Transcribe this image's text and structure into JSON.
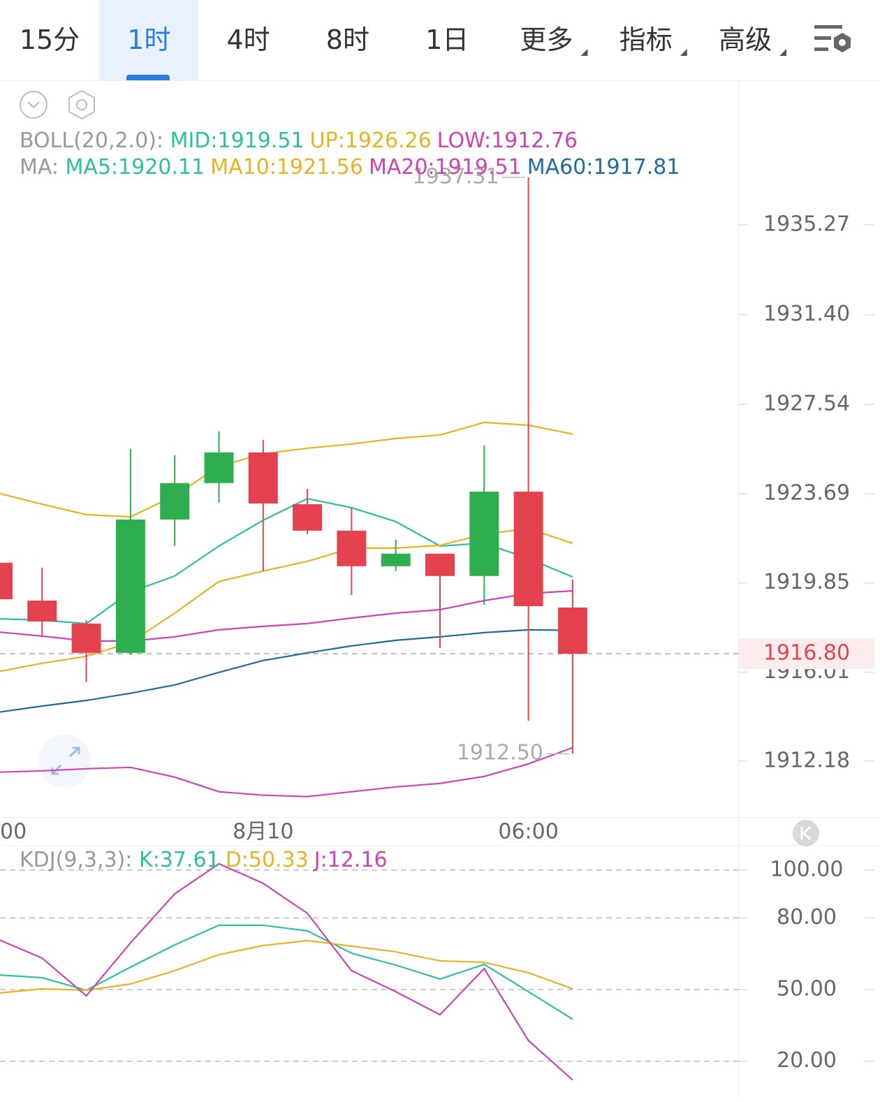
{
  "tabs": [
    "15分",
    "1时",
    "4时",
    "8时",
    "1日",
    "更多",
    "指标",
    "高级"
  ],
  "selected_tab": 1,
  "chart_data": [
    {
      "type": "candlestick",
      "categories": [
        "00",
        null,
        null,
        null,
        null,
        null,
        "8月10",
        null,
        null,
        null,
        null,
        null,
        "06:00",
        null
      ],
      "open": [
        1920.72,
        1919.09,
        1918.1,
        1916.84,
        1922.58,
        1924.15,
        1925.47,
        1923.24,
        1922.1,
        1920.57,
        1921.11,
        1920.15,
        1923.78,
        1918.79
      ],
      "high": [
        1920.72,
        1920.51,
        1918.25,
        1925.62,
        1925.35,
        1926.37,
        1926.01,
        1923.9,
        1923.09,
        1921.71,
        1921.11,
        1925.77,
        1937.31,
        1920.0
      ],
      "low": [
        1919.15,
        1917.53,
        1915.58,
        1916.75,
        1921.44,
        1923.3,
        1920.36,
        1921.95,
        1919.33,
        1920.36,
        1917.05,
        1918.91,
        1913.92,
        1912.5
      ],
      "close": [
        1919.15,
        1918.19,
        1916.84,
        1922.58,
        1924.15,
        1925.47,
        1923.27,
        1922.1,
        1920.57,
        1921.11,
        1920.15,
        1923.78,
        1918.85,
        1916.8
      ],
      "up_color": "#2eae4e",
      "down_color": "#e5424f",
      "series": [
        {
          "color": "#e6b422",
          "values": [
            1923.72,
            1923.24,
            1922.79,
            1922.7,
            1923.6,
            1924.87,
            1925.41,
            1925.65,
            1925.83,
            1926.07,
            1926.22,
            1926.76,
            1926.64,
            1926.26
          ]
        },
        {
          "color": "#cc44b4",
          "values": [
            1917.74,
            1917.56,
            1917.35,
            1917.35,
            1917.53,
            1917.83,
            1917.98,
            1918.1,
            1918.34,
            1918.55,
            1918.7,
            1919.09,
            1919.39,
            1919.51
          ]
        },
        {
          "color": "#cc44b4",
          "values": [
            1911.7,
            1911.76,
            1911.85,
            1911.91,
            1911.49,
            1910.86,
            1910.71,
            1910.65,
            1910.86,
            1911.07,
            1911.22,
            1911.52,
            1912.06,
            1912.76
          ]
        },
        {
          "color": "#2dbf9e",
          "values": [
            1918.31,
            1918.25,
            1918.1,
            1919.46,
            1920.15,
            1921.44,
            1922.55,
            1923.48,
            1923.09,
            1922.49,
            1921.44,
            1921.56,
            1920.9,
            1920.11
          ]
        },
        {
          "color": "#e6b422",
          "values": [
            1916.03,
            1916.39,
            1916.69,
            1917.29,
            1918.55,
            1919.91,
            1920.36,
            1920.78,
            1921.35,
            1921.35,
            1921.47,
            1921.95,
            1922.19,
            1921.56
          ]
        },
        {
          "color": "#1f6b99",
          "values": [
            1914.28,
            1914.55,
            1914.79,
            1915.1,
            1915.46,
            1916.0,
            1916.51,
            1916.84,
            1917.14,
            1917.38,
            1917.53,
            1917.71,
            1917.83,
            1917.81
          ]
        }
      ],
      "legend": [
        {
          "title": "BOLL(20,2.0): ",
          "items": [
            {
              "text": "MID:1919.51",
              "color": "#2dbf9e"
            },
            {
              "text": "UP:1926.26",
              "color": "#e6b422"
            },
            {
              "text": "LOW:1912.76",
              "color": "#cc44b4"
            }
          ]
        },
        {
          "title": "MA: ",
          "items": [
            {
              "text": "MA5:1920.11",
              "color": "#2dbf9e"
            },
            {
              "text": "MA10:1921.56",
              "color": "#e6b422"
            },
            {
              "text": "MA20:1919.51",
              "color": "#cc44b4"
            },
            {
              "text": "MA60:1917.81",
              "color": "#1f6b99"
            }
          ]
        }
      ],
      "high_label": "1937.31",
      "low_label": "1912.50",
      "last_label": "1916.80",
      "ylim": [
        1909.77,
        1941.49
      ],
      "yticks": [
        1935.27,
        {
          "value": 1931.4,
          "label": "1931.40"
        },
        1927.54,
        1923.69,
        1919.85,
        1916.01,
        1912.18
      ],
      "grid": false
    },
    {
      "type": "line",
      "legend": [
        {
          "title": "KDJ(9,3,3): ",
          "items": [
            {
              "text": "K:37.61",
              "color": "#2dbf9e"
            },
            {
              "text": "D:50.33",
              "color": "#e6b422"
            },
            {
              "text": "J:12.16",
              "color": "#cc44b4"
            }
          ]
        }
      ],
      "series": [
        {
          "color": "#2dbf9e",
          "values": [
            56.14,
            54.97,
            49.71,
            59.36,
            68.71,
            76.9,
            76.9,
            74.56,
            65.2,
            60.23,
            54.39,
            60.53,
            49.12,
            37.61
          ]
        },
        {
          "color": "#e6b422",
          "values": [
            48.54,
            50.29,
            49.71,
            52.34,
            57.89,
            64.62,
            68.42,
            70.47,
            68.13,
            65.79,
            61.99,
            61.4,
            57.02,
            50.33
          ]
        },
        {
          "color": "#cc44b4",
          "values": [
            71.05,
            63.16,
            47.37,
            69.59,
            90.06,
            102.63,
            94.44,
            81.87,
            57.89,
            49.12,
            39.47,
            58.77,
            28.65,
            12.16
          ]
        }
      ],
      "ylim": [
        5.85,
        110.5
      ],
      "yticks": [
        {
          "value": 100,
          "label": "100.00"
        },
        {
          "value": 80,
          "label": "80.00"
        },
        {
          "value": 50,
          "label": "50.00"
        },
        {
          "value": 20,
          "label": "20.00"
        }
      ],
      "grid": true
    }
  ]
}
